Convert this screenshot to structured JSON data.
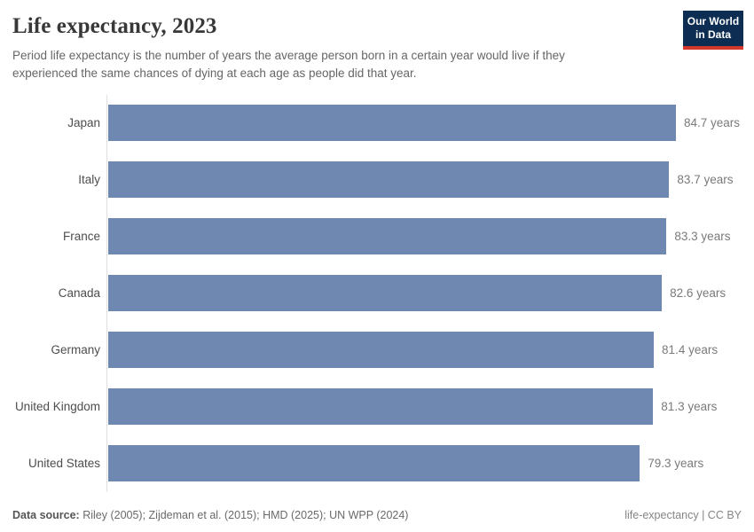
{
  "header": {
    "title": "Life expectancy, 2023",
    "subtitle": "Period life expectancy is the number of years the average person born in a certain year would live if they experienced the same chances of dying at each age as people did that year.",
    "logo": {
      "line1": "Our World",
      "line2": "in Data",
      "bg_color": "#0d2e52",
      "accent_color": "#d4382a"
    }
  },
  "chart_data": {
    "type": "bar",
    "orientation": "horizontal",
    "title": "Life expectancy, 2023",
    "categories": [
      "Japan",
      "Italy",
      "France",
      "Canada",
      "Germany",
      "United Kingdom",
      "United States"
    ],
    "values": [
      84.7,
      83.7,
      83.3,
      82.6,
      81.4,
      81.3,
      79.3
    ],
    "value_labels": [
      "84.7 years",
      "83.7 years",
      "83.3 years",
      "82.6 years",
      "81.4 years",
      "81.3 years",
      "79.3 years"
    ],
    "unit": "years",
    "xlim": [
      0,
      85
    ],
    "grid": false,
    "legend": false,
    "bar_color": "#6e88b1",
    "axis_line_color": "#e0e0e0"
  },
  "footer": {
    "source_label": "Data source:",
    "source_text": " Riley (2005); Zijdeman et al. (2015); HMD (2025); UN WPP (2024)",
    "right_text": "life-expectancy | CC BY"
  }
}
